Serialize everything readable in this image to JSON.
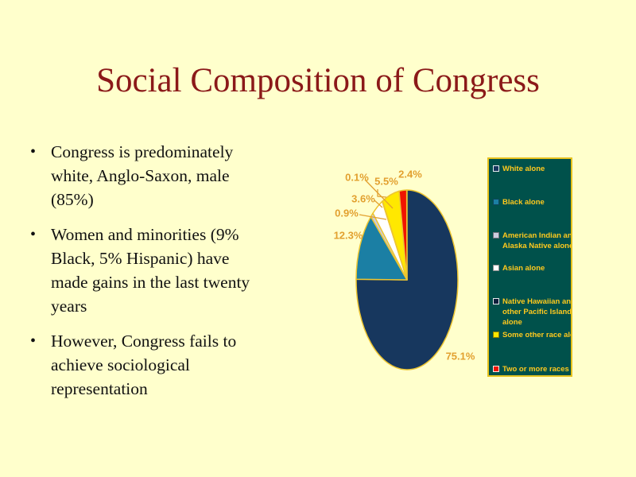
{
  "slide": {
    "background_color": "#FFFFCC",
    "title": "Social Composition of Congress",
    "title_color": "#8B1919",
    "bullets": [
      {
        "lines": [
          "Congress is predominately",
          "white, Anglo-Saxon, male",
          "(85%)"
        ]
      },
      {
        "lines": [
          "Women and minorities (9%",
          "Black, 5% Hispanic) have",
          "made gains in the last twenty",
          "years"
        ]
      },
      {
        "lines": [
          "However, Congress fails to",
          "achieve sociological",
          "representation"
        ]
      }
    ]
  },
  "chart_data": {
    "type": "pie",
    "title": "",
    "categories": [
      "White alone",
      "Black alone",
      "American Indian and Alaska Native alone",
      "Asian alone",
      "Native Hawaiian and other Pacific Islander alone",
      "Some other race alone",
      "Two or more races"
    ],
    "values": [
      75.1,
      12.3,
      0.9,
      3.6,
      0.1,
      5.5,
      2.4
    ],
    "labels": [
      "75.1%",
      "12.3%",
      "0.9%",
      "3.6%",
      "0.1%",
      "5.5%",
      "2.4%"
    ],
    "colors": [
      "#17375E",
      "#1B7FA4",
      "#CCCCDF",
      "#FFFFFF",
      "#0D1F3C",
      "#FFE800",
      "#F01400"
    ],
    "outline_color": "#EDC531",
    "data_label_color": "#E2A02F",
    "start_angle_deg": 0,
    "direction": "clockwise",
    "legend": {
      "position": "right",
      "background": "#00514B",
      "border_color": "#E6C21E",
      "text_color": "#FFC91E",
      "entries": [
        {
          "lines": [
            "White alone"
          ]
        },
        {
          "lines": [
            "Black alone"
          ]
        },
        {
          "lines": [
            "American Indian and",
            "Alaska Native alone"
          ]
        },
        {
          "lines": [
            "Asian alone"
          ]
        },
        {
          "lines": [
            "Native Hawaiian and",
            "other Pacific Islander",
            "alone"
          ]
        },
        {
          "lines": [
            "Some other race alon"
          ]
        },
        {
          "lines": [
            "Two or more races"
          ]
        }
      ]
    }
  }
}
